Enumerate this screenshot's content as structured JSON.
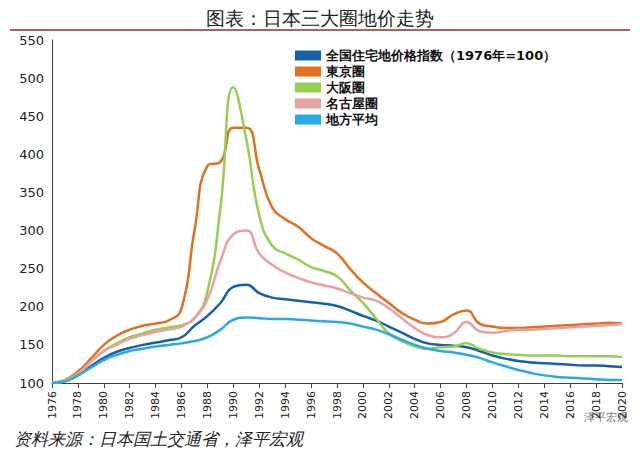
{
  "chart_data": {
    "type": "line",
    "title": "图表：日本三大圈地价走势",
    "annotations": [
      "资料来源：日本国土交通省，泽平宏观",
      "泽平宏观"
    ],
    "x": [
      1976,
      1977,
      1978,
      1979,
      1980,
      1981,
      1982,
      1983,
      1984,
      1985,
      1986,
      1987,
      1988,
      1989,
      1990,
      1991,
      1992,
      1993,
      1994,
      1995,
      1996,
      1997,
      1998,
      1999,
      2000,
      2001,
      2002,
      2003,
      2004,
      2005,
      2006,
      2007,
      2008,
      2009,
      2010,
      2011,
      2012,
      2013,
      2014,
      2015,
      2016,
      2017,
      2018,
      2019,
      2020
    ],
    "xlim": [
      1976,
      2020
    ],
    "xticks": [
      1976,
      1978,
      1980,
      1982,
      1984,
      1986,
      1988,
      1990,
      1992,
      1994,
      1996,
      1998,
      2000,
      2002,
      2004,
      2006,
      2008,
      2010,
      2012,
      2014,
      2016,
      2018,
      2020
    ],
    "ylim": [
      100,
      550
    ],
    "yticks": [
      100,
      150,
      200,
      250,
      300,
      350,
      400,
      450,
      500,
      550
    ],
    "grid": false,
    "legend": "top",
    "series": [
      {
        "name": "全国住宅地价格指数（1976年=100）",
        "color": "#1560a8",
        "values": [
          100,
          103,
          110,
          122,
          133,
          141,
          146,
          150,
          153,
          156,
          160,
          175,
          188,
          205,
          226,
          229,
          218,
          212,
          210,
          208,
          206,
          204,
          201,
          195,
          188,
          182,
          174,
          166,
          158,
          152,
          150,
          149,
          147,
          142,
          136,
          132,
          129,
          127,
          126,
          125,
          124,
          123,
          123,
          122,
          121
        ]
      },
      {
        "name": "東京圈",
        "color": "#e2701f",
        "values": [
          100,
          104,
          115,
          132,
          150,
          162,
          170,
          175,
          178,
          182,
          198,
          300,
          385,
          390,
          435,
          435,
          380,
          330,
          315,
          305,
          290,
          280,
          270,
          250,
          232,
          218,
          205,
          192,
          183,
          178,
          180,
          190,
          195,
          178,
          174,
          172,
          172,
          173,
          174,
          175,
          176,
          177,
          178,
          179,
          178
        ]
      },
      {
        "name": "大阪圈",
        "color": "#92d050",
        "values": [
          100,
          104,
          112,
          128,
          142,
          152,
          160,
          165,
          170,
          173,
          176,
          185,
          220,
          330,
          488,
          420,
          320,
          280,
          270,
          262,
          252,
          247,
          240,
          222,
          205,
          185,
          165,
          155,
          148,
          145,
          147,
          148,
          152,
          145,
          140,
          138,
          137,
          136,
          136,
          136,
          135,
          135,
          135,
          135,
          134
        ]
      },
      {
        "name": "名古屋圈",
        "color": "#e8a1a3",
        "values": [
          100,
          103,
          112,
          128,
          142,
          150,
          158,
          163,
          167,
          170,
          174,
          185,
          210,
          260,
          295,
          300,
          270,
          255,
          245,
          238,
          232,
          228,
          224,
          218,
          212,
          208,
          198,
          185,
          172,
          163,
          160,
          165,
          180,
          168,
          166,
          168,
          170,
          170,
          171,
          172,
          173,
          174,
          175,
          176,
          177
        ]
      },
      {
        "name": "地方平均",
        "color": "#29a9e6",
        "values": [
          100,
          102,
          110,
          120,
          130,
          137,
          142,
          145,
          148,
          150,
          152,
          155,
          160,
          170,
          183,
          186,
          185,
          184,
          184,
          183,
          182,
          181,
          180,
          178,
          174,
          170,
          164,
          157,
          150,
          145,
          142,
          140,
          137,
          133,
          127,
          122,
          117,
          113,
          110,
          108,
          107,
          106,
          105,
          104,
          104
        ]
      }
    ]
  }
}
